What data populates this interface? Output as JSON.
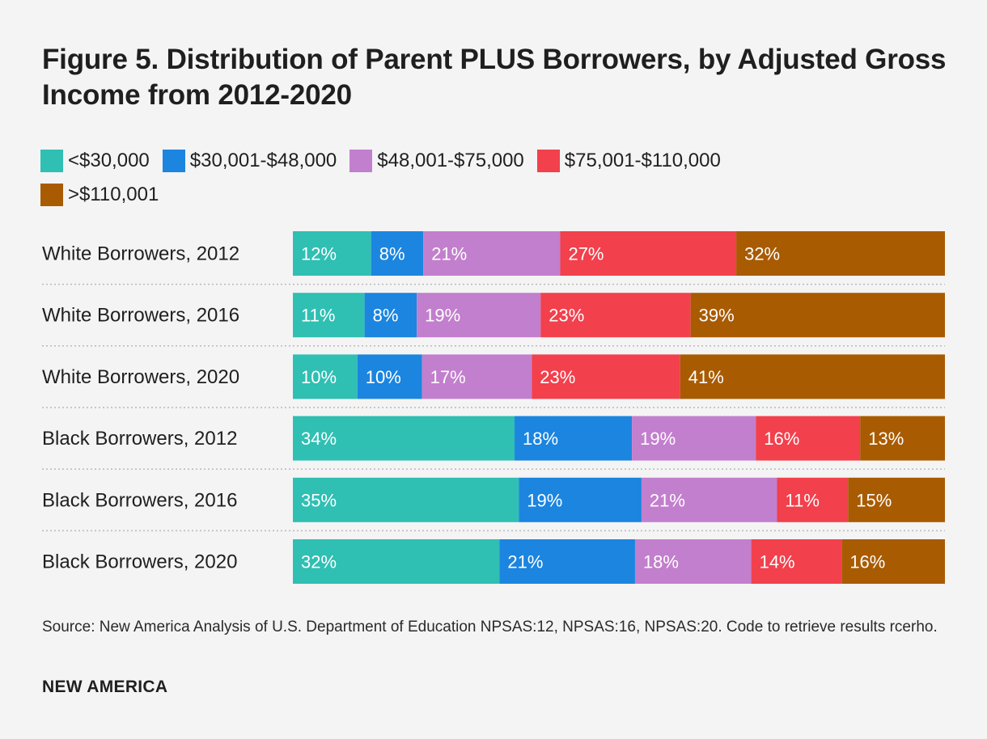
{
  "header": {
    "title": "Figure 5. Distribution of Parent PLUS Borrowers, by Adjusted Gross Income from 2012-2020"
  },
  "chart_data": {
    "type": "bar",
    "orientation": "horizontal",
    "stacked": true,
    "unit": "%",
    "categories": [
      "White Borrowers, 2012",
      "White Borrowers, 2016",
      "White Borrowers, 2020",
      "Black Borrowers, 2012",
      "Black Borrowers, 2016",
      "Black Borrowers, 2020"
    ],
    "series": [
      {
        "name": "<$30,000",
        "color": "#2fbfb3",
        "values": [
          12,
          11,
          10,
          34,
          35,
          32
        ]
      },
      {
        "name": "$30,001-$48,000",
        "color": "#1b85e0",
        "values": [
          8,
          8,
          10,
          18,
          19,
          21
        ]
      },
      {
        "name": "$48,001-$75,000",
        "color": "#c27fcd",
        "values": [
          21,
          19,
          17,
          19,
          21,
          18
        ]
      },
      {
        "name": "$75,001-$110,000",
        "color": "#f2404c",
        "values": [
          27,
          23,
          23,
          16,
          11,
          14
        ]
      },
      {
        "name": ">$110,001",
        "color": "#a95b02",
        "values": [
          32,
          39,
          41,
          13,
          15,
          16
        ]
      }
    ],
    "legend_position": "top-left",
    "grid": false
  },
  "footer": {
    "source": "Source: New America Analysis of U.S. Department of Education NPSAS:12, NPSAS:16, NPSAS:20. Code to retrieve results rcerho.",
    "brand": "NEW AMERICA"
  }
}
